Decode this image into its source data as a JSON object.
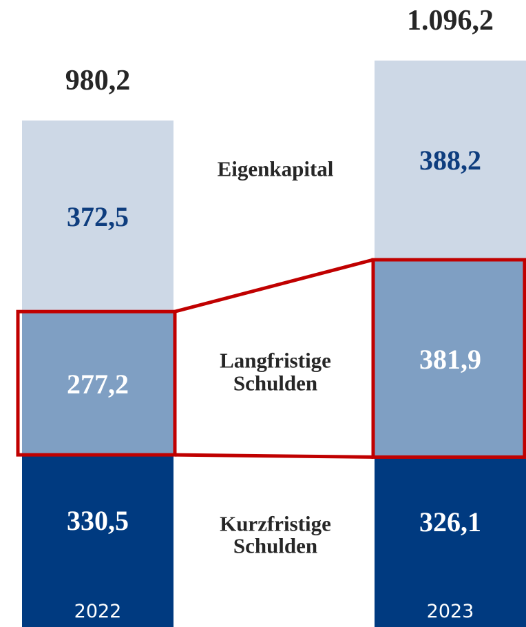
{
  "chart_data": {
    "type": "stacked_bar",
    "categories": [
      "2022",
      "2023"
    ],
    "series": [
      {
        "name": "Kurzfristige Schulden",
        "color": "#003a80",
        "label_color": "#ffffff",
        "values": [
          330.5,
          326.1
        ],
        "value_labels": [
          "330,5",
          "326,1"
        ]
      },
      {
        "name": "Langfristige Schulden",
        "color": "#7f9fc3",
        "label_color": "#ffffff",
        "highlight": true,
        "highlight_color": "#c00000",
        "values": [
          277.2,
          381.9
        ],
        "value_labels": [
          "277,2",
          "381,9"
        ]
      },
      {
        "name": "Eigenkapital",
        "color": "#cdd8e6",
        "label_color": "#0e3d7e",
        "values": [
          372.5,
          388.2
        ],
        "value_labels": [
          "372,5",
          "388,2"
        ]
      }
    ],
    "totals": [
      980.2,
      1096.2
    ],
    "total_labels": [
      "980,2",
      "1.096,2"
    ]
  }
}
